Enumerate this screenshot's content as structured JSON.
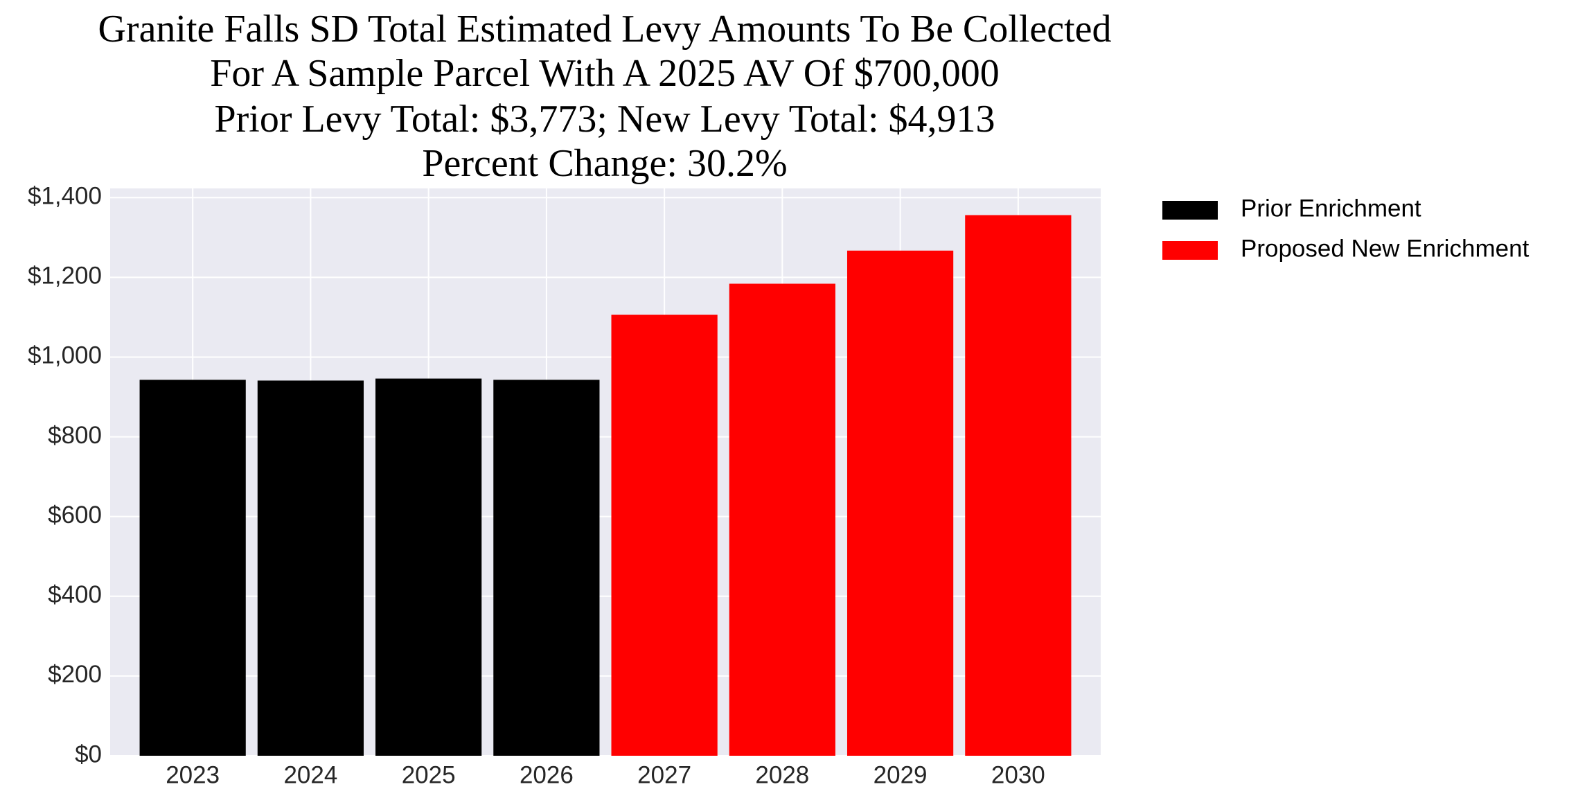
{
  "chart_data": {
    "type": "bar",
    "title": [
      "Granite Falls SD Total Estimated Levy Amounts To Be Collected",
      "For A Sample Parcel With A 2025 AV Of $700,000",
      "Prior Levy Total:  $3,773; New Levy Total: $4,913",
      "Percent Change: 30.2%"
    ],
    "categories": [
      "2023",
      "2024",
      "2025",
      "2026",
      "2027",
      "2028",
      "2029",
      "2030"
    ],
    "series": [
      {
        "name": "Prior Enrichment",
        "color": "#000000",
        "values": [
          943,
          941,
          946,
          943,
          null,
          null,
          null,
          null
        ]
      },
      {
        "name": "Proposed New Enrichment",
        "color": "#ff0000",
        "values": [
          null,
          null,
          null,
          null,
          1106,
          1184,
          1267,
          1356
        ]
      }
    ],
    "ylim": [
      0,
      1423
    ],
    "yticks": [
      {
        "value": 0,
        "label": "$0"
      },
      {
        "value": 200,
        "label": "$200"
      },
      {
        "value": 400,
        "label": "$400"
      },
      {
        "value": 600,
        "label": "$600"
      },
      {
        "value": 800,
        "label": "$800"
      },
      {
        "value": 1000,
        "label": "$1,000"
      },
      {
        "value": 1200,
        "label": "$1,200"
      },
      {
        "value": 1400,
        "label": "$1,400"
      }
    ],
    "grid": true,
    "legend": "outside right"
  }
}
